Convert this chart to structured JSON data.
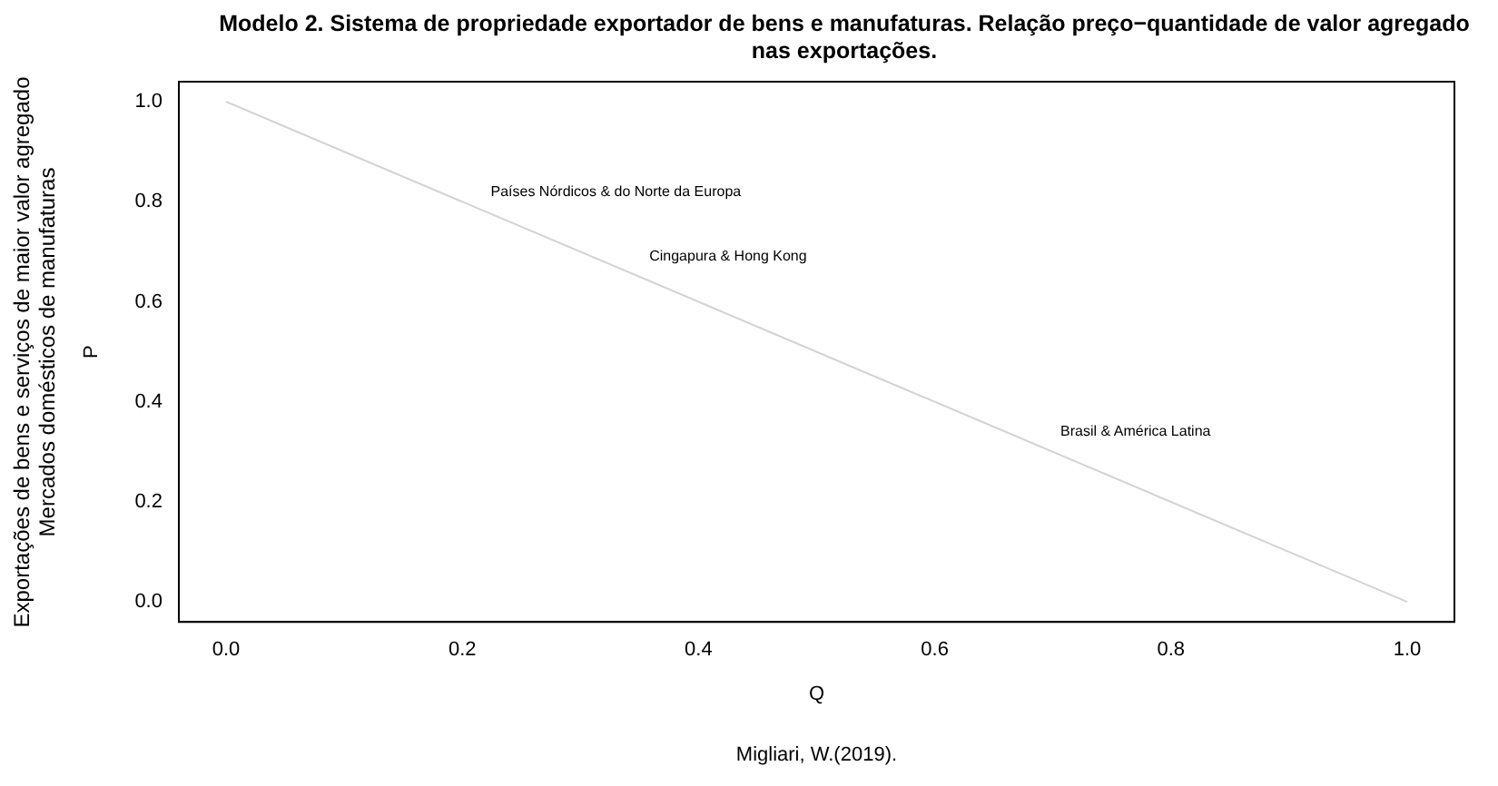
{
  "chart_data": {
    "type": "line",
    "title": "Modelo 2. Sistema de propriedade exportador de bens e manufaturas. Relação preço−quantidade de valor agregado nas exportações.",
    "xlabel": "Q",
    "ylabel": "P",
    "x": [
      0,
      1
    ],
    "series": [
      {
        "color": "#d3d3d3",
        "values": [
          1,
          0
        ]
      }
    ],
    "xlim": [
      -0.04,
      1.04
    ],
    "ylim": [
      -0.04,
      1.04
    ],
    "xticks": [
      {
        "value": 0,
        "label": "0.0"
      },
      0.2,
      0.4,
      0.6,
      0.8,
      {
        "value": 1,
        "label": "1.0"
      }
    ],
    "yticks": [
      {
        "value": 0,
        "label": "0.0"
      },
      0.2,
      0.4,
      0.6,
      0.8,
      {
        "value": 1,
        "label": "1.0"
      }
    ],
    "grid": false,
    "legend": false,
    "marker": "none",
    "line_style": "solid",
    "annotations": [
      "Exportações de bens e serviços de maior valor agregado",
      "Mercados domésticos de manufaturas",
      "Países Nórdicos & do Norte da Europa",
      "Cingapura & Hong Kong",
      "Brasil & América Latina",
      "Migliari, W.(2019)."
    ]
  }
}
